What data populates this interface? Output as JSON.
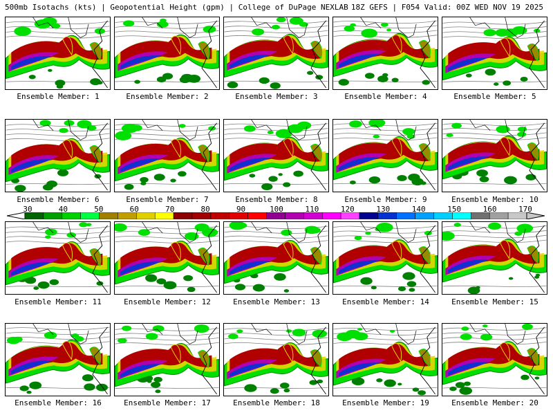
{
  "header": {
    "left_title": "500mb Isotachs (kts) | Geopotential Height (gpm) | College of DuPage NEXLAB",
    "right_title": "18Z GEFS | F054 Valid: 00Z WED NOV 19 2025"
  },
  "members": [
    {
      "label": "Ensemble Member: 1"
    },
    {
      "label": "Ensemble Member: 2"
    },
    {
      "label": "Ensemble Member: 3"
    },
    {
      "label": "Ensemble Member: 4"
    },
    {
      "label": "Ensemble Member: 5"
    },
    {
      "label": "Ensemble Member: 6"
    },
    {
      "label": "Ensemble Member: 7"
    },
    {
      "label": "Ensemble Member: 8"
    },
    {
      "label": "Ensemble Member: 9"
    },
    {
      "label": "Ensemble Member: 10"
    },
    {
      "label": "Ensemble Member: 11"
    },
    {
      "label": "Ensemble Member: 12"
    },
    {
      "label": "Ensemble Member: 13"
    },
    {
      "label": "Ensemble Member: 14"
    },
    {
      "label": "Ensemble Member: 15"
    },
    {
      "label": "Ensemble Member: 16"
    },
    {
      "label": "Ensemble Member: 17"
    },
    {
      "label": "Ensemble Member: 18"
    },
    {
      "label": "Ensemble Member: 19"
    },
    {
      "label": "Ensemble Member: 20"
    }
  ],
  "colorbar": {
    "labels": [
      "30",
      "40",
      "50",
      "60",
      "70",
      "80",
      "90",
      "100",
      "110",
      "120",
      "130",
      "140",
      "150",
      "160",
      "170"
    ],
    "colors": [
      "#006400",
      "#00a000",
      "#00d000",
      "#00ff40",
      "#a08000",
      "#c0a000",
      "#e0d000",
      "#ffff00",
      "#8b0000",
      "#a00000",
      "#c00000",
      "#e00000",
      "#ff0000",
      "#900090",
      "#b000b0",
      "#d000d0",
      "#ff00ff",
      "#ff40ff",
      "#000090",
      "#0030d0",
      "#0070ff",
      "#00a0ff",
      "#00d0ff",
      "#00ffff",
      "#707070",
      "#a0a0a0",
      "#c8c8c8"
    ]
  },
  "map_colors": {
    "green_dark": "#008000",
    "green_light": "#00e000",
    "yellow": "#e6d800",
    "olive": "#9a8a00",
    "red": "#b00000",
    "magenta": "#b000b0",
    "blue": "#1030d0",
    "contour": "#808080",
    "border": "#000000"
  }
}
